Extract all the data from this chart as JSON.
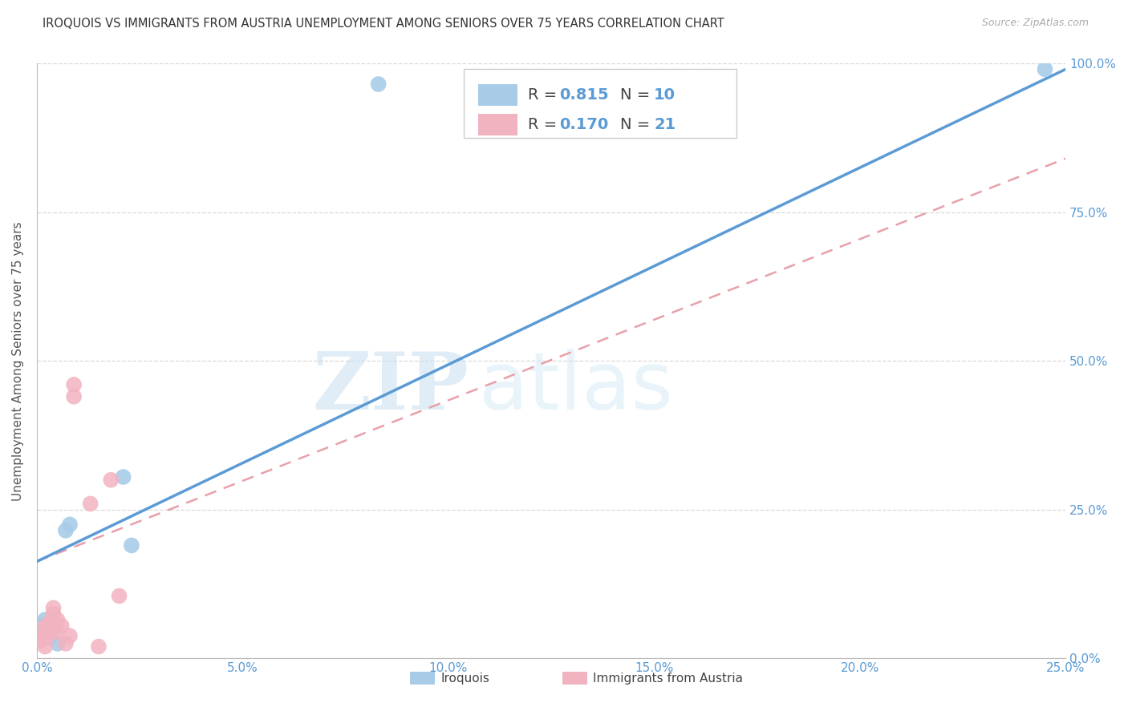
{
  "title": "IROQUOIS VS IMMIGRANTS FROM AUSTRIA UNEMPLOYMENT AMONG SENIORS OVER 75 YEARS CORRELATION CHART",
  "source": "Source: ZipAtlas.com",
  "ylabel": "Unemployment Among Seniors over 75 years",
  "legend_labels": [
    "Iroquois",
    "Immigrants from Austria"
  ],
  "legend_r": [
    "R = 0.815",
    "R = 0.170"
  ],
  "legend_n": [
    "N = 10",
    "N = 21"
  ],
  "xlim": [
    0.0,
    0.25
  ],
  "ylim": [
    0.0,
    1.0
  ],
  "xticks": [
    0.0,
    0.05,
    0.1,
    0.15,
    0.2,
    0.25
  ],
  "yticks": [
    0.0,
    0.25,
    0.5,
    0.75,
    1.0
  ],
  "color_blue": "#A8CCE8",
  "color_pink": "#F2B3C0",
  "color_blue_line": "#5B9BD5",
  "color_pink_line": "#E8A0AA",
  "blue_scatter_x": [
    0.001,
    0.002,
    0.003,
    0.004,
    0.005,
    0.007,
    0.008,
    0.021,
    0.023,
    0.245
  ],
  "blue_scatter_y": [
    0.055,
    0.065,
    0.035,
    0.048,
    0.025,
    0.215,
    0.225,
    0.305,
    0.19,
    0.99
  ],
  "blue_outlier_x": [
    0.083
  ],
  "blue_outlier_y": [
    0.965
  ],
  "pink_scatter_x": [
    0.001,
    0.001,
    0.001,
    0.002,
    0.002,
    0.003,
    0.003,
    0.003,
    0.004,
    0.004,
    0.005,
    0.005,
    0.006,
    0.007,
    0.008,
    0.009,
    0.009,
    0.018,
    0.02,
    0.013,
    0.015
  ],
  "pink_scatter_y": [
    0.03,
    0.04,
    0.05,
    0.02,
    0.035,
    0.04,
    0.055,
    0.06,
    0.075,
    0.085,
    0.065,
    0.045,
    0.055,
    0.025,
    0.038,
    0.44,
    0.46,
    0.3,
    0.105,
    0.26,
    0.02
  ],
  "blue_line_x": [
    0.0,
    0.25
  ],
  "blue_line_y": [
    0.163,
    0.99
  ],
  "pink_line_x": [
    0.0,
    0.25
  ],
  "pink_line_y": [
    0.163,
    0.84
  ],
  "watermark_zip": "ZIP",
  "watermark_atlas": "atlas",
  "background_color": "#FFFFFF",
  "grid_color": "#D8D8D8"
}
